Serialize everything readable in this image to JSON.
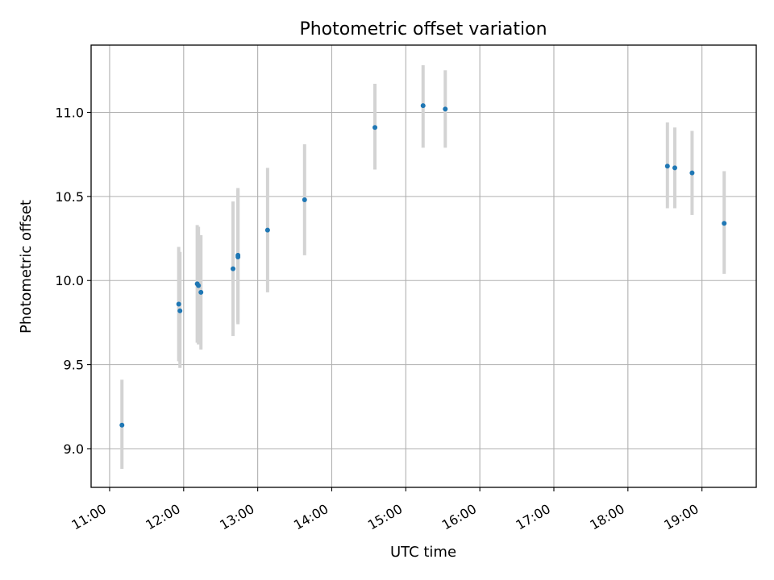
{
  "chart_data": {
    "type": "scatter",
    "title": "Photometric offset variation",
    "xlabel": "UTC time",
    "ylabel": "Photometric offset",
    "xlim": [
      "10:45",
      "19:44"
    ],
    "ylim": [
      8.77,
      11.4
    ],
    "grid": true,
    "x_ticks": [
      "11:00",
      "12:00",
      "13:00",
      "14:00",
      "15:00",
      "16:00",
      "17:00",
      "18:00",
      "19:00"
    ],
    "y_ticks": [
      "9.0",
      "9.5",
      "10.0",
      "10.5",
      "11.0"
    ],
    "colors": {
      "points": "#1f77b4",
      "error_bars": "#d3d3d3",
      "grid": "#b0b0b0"
    },
    "series": [
      {
        "points": [
          {
            "x": "11:10",
            "y": 9.14,
            "ylo": 8.88,
            "yhi": 9.41
          },
          {
            "x": "11:56",
            "y": 9.86,
            "ylo": 9.52,
            "yhi": 10.2
          },
          {
            "x": "11:57",
            "y": 9.82,
            "ylo": 9.48,
            "yhi": 10.17
          },
          {
            "x": "12:11",
            "y": 9.98,
            "ylo": 9.63,
            "yhi": 10.33
          },
          {
            "x": "12:12",
            "y": 9.97,
            "ylo": 9.62,
            "yhi": 10.32
          },
          {
            "x": "12:14",
            "y": 9.93,
            "ylo": 9.59,
            "yhi": 10.27
          },
          {
            "x": "12:40",
            "y": 10.07,
            "ylo": 9.67,
            "yhi": 10.47
          },
          {
            "x": "12:44",
            "y": 10.15,
            "ylo": 9.75,
            "yhi": 10.55
          },
          {
            "x": "12:44",
            "y": 10.14,
            "ylo": 9.74,
            "yhi": 10.54
          },
          {
            "x": "13:08",
            "y": 10.3,
            "ylo": 9.93,
            "yhi": 10.67
          },
          {
            "x": "13:38",
            "y": 10.48,
            "ylo": 10.15,
            "yhi": 10.81
          },
          {
            "x": "14:35",
            "y": 10.91,
            "ylo": 10.66,
            "yhi": 11.17
          },
          {
            "x": "15:14",
            "y": 11.04,
            "ylo": 10.79,
            "yhi": 11.28
          },
          {
            "x": "15:32",
            "y": 11.02,
            "ylo": 10.79,
            "yhi": 11.25
          },
          {
            "x": "18:32",
            "y": 10.68,
            "ylo": 10.43,
            "yhi": 10.94
          },
          {
            "x": "18:38",
            "y": 10.67,
            "ylo": 10.43,
            "yhi": 10.91
          },
          {
            "x": "18:52",
            "y": 10.64,
            "ylo": 10.39,
            "yhi": 10.89
          },
          {
            "x": "19:18",
            "y": 10.34,
            "ylo": 10.04,
            "yhi": 10.65
          }
        ]
      }
    ]
  }
}
